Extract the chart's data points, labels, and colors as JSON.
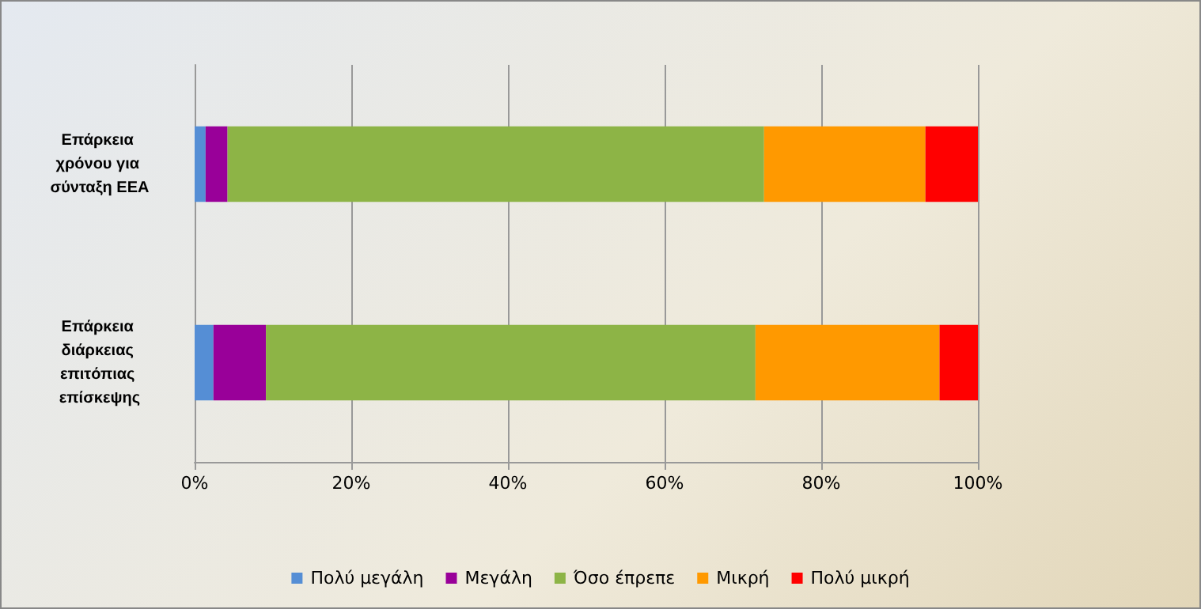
{
  "chart_data": {
    "type": "bar",
    "orientation": "horizontal",
    "stacked": true,
    "categories": [
      "Επάρκεια χρόνου για σύνταξη ΕΕΑ",
      "Επάρκεια διάρκειας επιτόπιας επίσκεψης"
    ],
    "series": [
      {
        "name": "Πολύ μεγάλη",
        "color": "#558ed5",
        "values": [
          1.4,
          2.4
        ]
      },
      {
        "name": "Μεγάλη",
        "color": "#990099",
        "values": [
          2.8,
          6.7
        ]
      },
      {
        "name": "Όσο έπρεπε",
        "color": "#8db446",
        "values": [
          68.5,
          62.5
        ]
      },
      {
        "name": "Μικρή",
        "color": "#ff9900",
        "values": [
          20.6,
          23.5
        ]
      },
      {
        "name": "Πολύ μικρή",
        "color": "#ff0000",
        "values": [
          6.7,
          4.9
        ]
      }
    ],
    "xlim": [
      0,
      100
    ],
    "xticks": [
      {
        "value": 0,
        "label": "0%"
      },
      {
        "value": 20,
        "label": "20%"
      },
      {
        "value": 40,
        "label": "40%"
      },
      {
        "value": 60,
        "label": "60%"
      },
      {
        "value": 80,
        "label": "80%"
      },
      {
        "value": 100,
        "label": "100%"
      }
    ],
    "grid": "x",
    "legend": "bottom"
  }
}
